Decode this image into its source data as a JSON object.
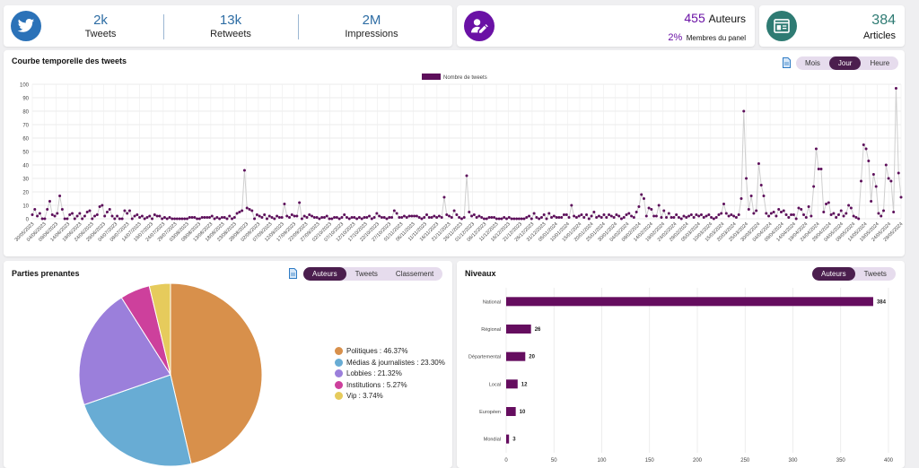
{
  "kpi": {
    "tweets": {
      "value": "2k",
      "label": "Tweets"
    },
    "retweets": {
      "value": "13k",
      "label": "Retweets"
    },
    "impressions": {
      "value": "2M",
      "label": "Impressions"
    },
    "authors": {
      "value": "455",
      "label": "Auteurs",
      "pct": "2%",
      "pct_label": "Membres du panel"
    },
    "articles": {
      "value": "384",
      "label": "Articles"
    }
  },
  "timeline": {
    "title": "Courbe temporelle des tweets",
    "toggle": [
      "Mois",
      "Jour",
      "Heure"
    ],
    "active": "Jour"
  },
  "stakeholders": {
    "title": "Parties prenantes",
    "toggle": [
      "Auteurs",
      "Tweets",
      "Classement"
    ],
    "active": "Auteurs"
  },
  "levels": {
    "title": "Niveaux",
    "toggle": [
      "Auteurs",
      "Tweets"
    ],
    "active": "Auteurs"
  },
  "colors": {
    "twitter_blue": "#2b72b8",
    "purple": "#6a11a5",
    "teal": "#2e7b73",
    "dark_purple": "#4b1e4e",
    "bar": "#650d5f",
    "line_point": "#5d0f5b"
  },
  "chart_data": [
    {
      "type": "line",
      "legend": "Nombre de tweets",
      "ylim": [
        0,
        100
      ],
      "yticks": [
        0,
        10,
        20,
        30,
        40,
        50,
        60,
        70,
        80,
        90,
        100
      ],
      "grid": true,
      "legend_position": "top",
      "xtick_labels": [
        "30/05/2023",
        "04/06/2023",
        "09/06/2023",
        "14/06/2023",
        "19/06/2023",
        "24/06/2023",
        "29/06/2023",
        "04/07/2023",
        "09/07/2023",
        "14/07/2023",
        "19/07/2023",
        "24/07/2023",
        "29/07/2023",
        "03/08/2023",
        "08/08/2023",
        "13/08/2023",
        "18/08/2023",
        "23/08/2023",
        "28/08/2023",
        "02/09/2023",
        "07/09/2023",
        "12/09/2023",
        "17/09/2023",
        "22/09/2023",
        "27/09/2023",
        "02/10/2023",
        "07/10/2023",
        "12/10/2023",
        "17/10/2023",
        "22/10/2023",
        "27/10/2023",
        "01/11/2023",
        "06/11/2023",
        "11/11/2023",
        "16/11/2023",
        "21/11/2023",
        "26/11/2023",
        "01/12/2023",
        "06/12/2023",
        "11/12/2023",
        "16/12/2023",
        "21/12/2023",
        "26/12/2023",
        "31/12/2023",
        "05/01/2024",
        "10/01/2024",
        "15/01/2024",
        "20/01/2024",
        "25/01/2024",
        "30/01/2024",
        "04/02/2024",
        "09/02/2024",
        "14/02/2024",
        "19/02/2024",
        "24/02/2024",
        "29/02/2024",
        "05/03/2024",
        "10/03/2024",
        "15/03/2024",
        "20/03/2024",
        "25/03/2024",
        "30/03/2024",
        "04/04/2024",
        "09/04/2024",
        "14/04/2024",
        "19/04/2024",
        "24/04/2024",
        "29/04/2024",
        "04/05/2024",
        "09/05/2024",
        "14/05/2024",
        "19/05/2024",
        "24/05/2024",
        "29/05/2024"
      ],
      "start": "2023-05-30",
      "values": [
        3,
        7,
        2,
        4,
        0,
        0,
        7,
        13,
        3,
        2,
        4,
        17,
        7,
        0,
        0,
        3,
        4,
        0,
        2,
        4,
        0,
        2,
        5,
        6,
        0,
        2,
        3,
        9,
        10,
        2,
        5,
        7,
        2,
        0,
        2,
        0,
        0,
        6,
        4,
        6,
        0,
        2,
        3,
        1,
        2,
        0,
        1,
        2,
        0,
        3,
        2,
        2,
        0,
        1,
        0,
        1,
        0,
        0,
        0,
        0,
        0,
        0,
        0,
        1,
        1,
        1,
        0,
        0,
        1,
        1,
        1,
        1,
        2,
        0,
        1,
        0,
        1,
        1,
        0,
        2,
        0,
        1,
        4,
        5,
        6,
        36,
        8,
        7,
        6,
        0,
        3,
        2,
        1,
        3,
        0,
        2,
        1,
        0,
        2,
        1,
        1,
        11,
        2,
        1,
        3,
        2,
        2,
        12,
        0,
        2,
        1,
        3,
        2,
        1,
        1,
        0,
        1,
        1,
        2,
        0,
        0,
        1,
        1,
        0,
        1,
        3,
        1,
        0,
        1,
        1,
        0,
        1,
        0,
        1,
        1,
        2,
        0,
        1,
        4,
        2,
        1,
        1,
        0,
        1,
        1,
        6,
        4,
        1,
        1,
        2,
        1,
        2,
        2,
        2,
        2,
        1,
        0,
        1,
        3,
        1,
        1,
        2,
        1,
        2,
        1,
        16,
        3,
        2,
        1,
        6,
        3,
        1,
        0,
        1,
        32,
        5,
        2,
        3,
        1,
        2,
        1,
        0,
        0,
        1,
        1,
        1,
        0,
        0,
        0,
        1,
        0,
        1,
        0,
        0,
        0,
        0,
        0,
        0,
        1,
        2,
        0,
        4,
        1,
        0,
        1,
        3,
        0,
        4,
        1,
        2,
        1,
        1,
        1,
        3,
        3,
        1,
        10,
        2,
        1,
        2,
        3,
        1,
        3,
        0,
        2,
        5,
        1,
        2,
        1,
        3,
        1,
        3,
        2,
        1,
        3,
        2,
        0,
        1,
        3,
        4,
        2,
        1,
        5,
        9,
        18,
        15,
        2,
        8,
        7,
        2,
        2,
        10,
        1,
        6,
        1,
        4,
        1,
        1,
        3,
        1,
        0,
        2,
        1,
        2,
        3,
        1,
        3,
        2,
        3,
        1,
        2,
        3,
        1,
        0,
        1,
        3,
        4,
        11,
        4,
        2,
        3,
        2,
        1,
        3,
        15,
        80,
        30,
        7,
        17,
        4,
        6,
        41,
        25,
        17,
        4,
        2,
        4,
        5,
        2,
        7,
        5,
        6,
        3,
        1,
        3,
        3,
        0,
        8,
        7,
        3,
        1,
        9,
        2,
        24,
        52,
        37,
        37,
        5,
        11,
        12,
        3,
        4,
        1,
        3,
        6,
        2,
        4,
        10,
        8,
        2,
        1,
        0,
        28,
        55,
        52,
        43,
        13,
        33,
        24,
        4,
        2,
        6,
        40,
        30,
        28,
        5,
        97,
        34,
        16
      ]
    },
    {
      "type": "pie",
      "slices": [
        {
          "label": "Politiques",
          "display": "Politiques : 46.37%",
          "value": 46.37,
          "color": "#d8904b"
        },
        {
          "label": "Médias & journalistes",
          "display": "Médias & journalistes : 23.30%",
          "value": 23.3,
          "color": "#68acd4"
        },
        {
          "label": "Lobbies",
          "display": "Lobbies : 21.32%",
          "value": 21.32,
          "color": "#9b7fdb"
        },
        {
          "label": "Institutions",
          "display": "Institutions : 5.27%",
          "value": 5.27,
          "color": "#cd409c"
        },
        {
          "label": "Vip",
          "display": "Vip : 3.74%",
          "value": 3.74,
          "color": "#e6cb5c"
        }
      ]
    },
    {
      "type": "bar",
      "orientation": "horizontal",
      "categories": [
        "National",
        "Régional",
        "Départemental",
        "Local",
        "Européen",
        "Mondial"
      ],
      "values": [
        384,
        26,
        20,
        12,
        10,
        3
      ],
      "xlim": [
        0,
        400
      ],
      "xticks": [
        0,
        50,
        100,
        150,
        200,
        250,
        300,
        350,
        400
      ]
    }
  ]
}
